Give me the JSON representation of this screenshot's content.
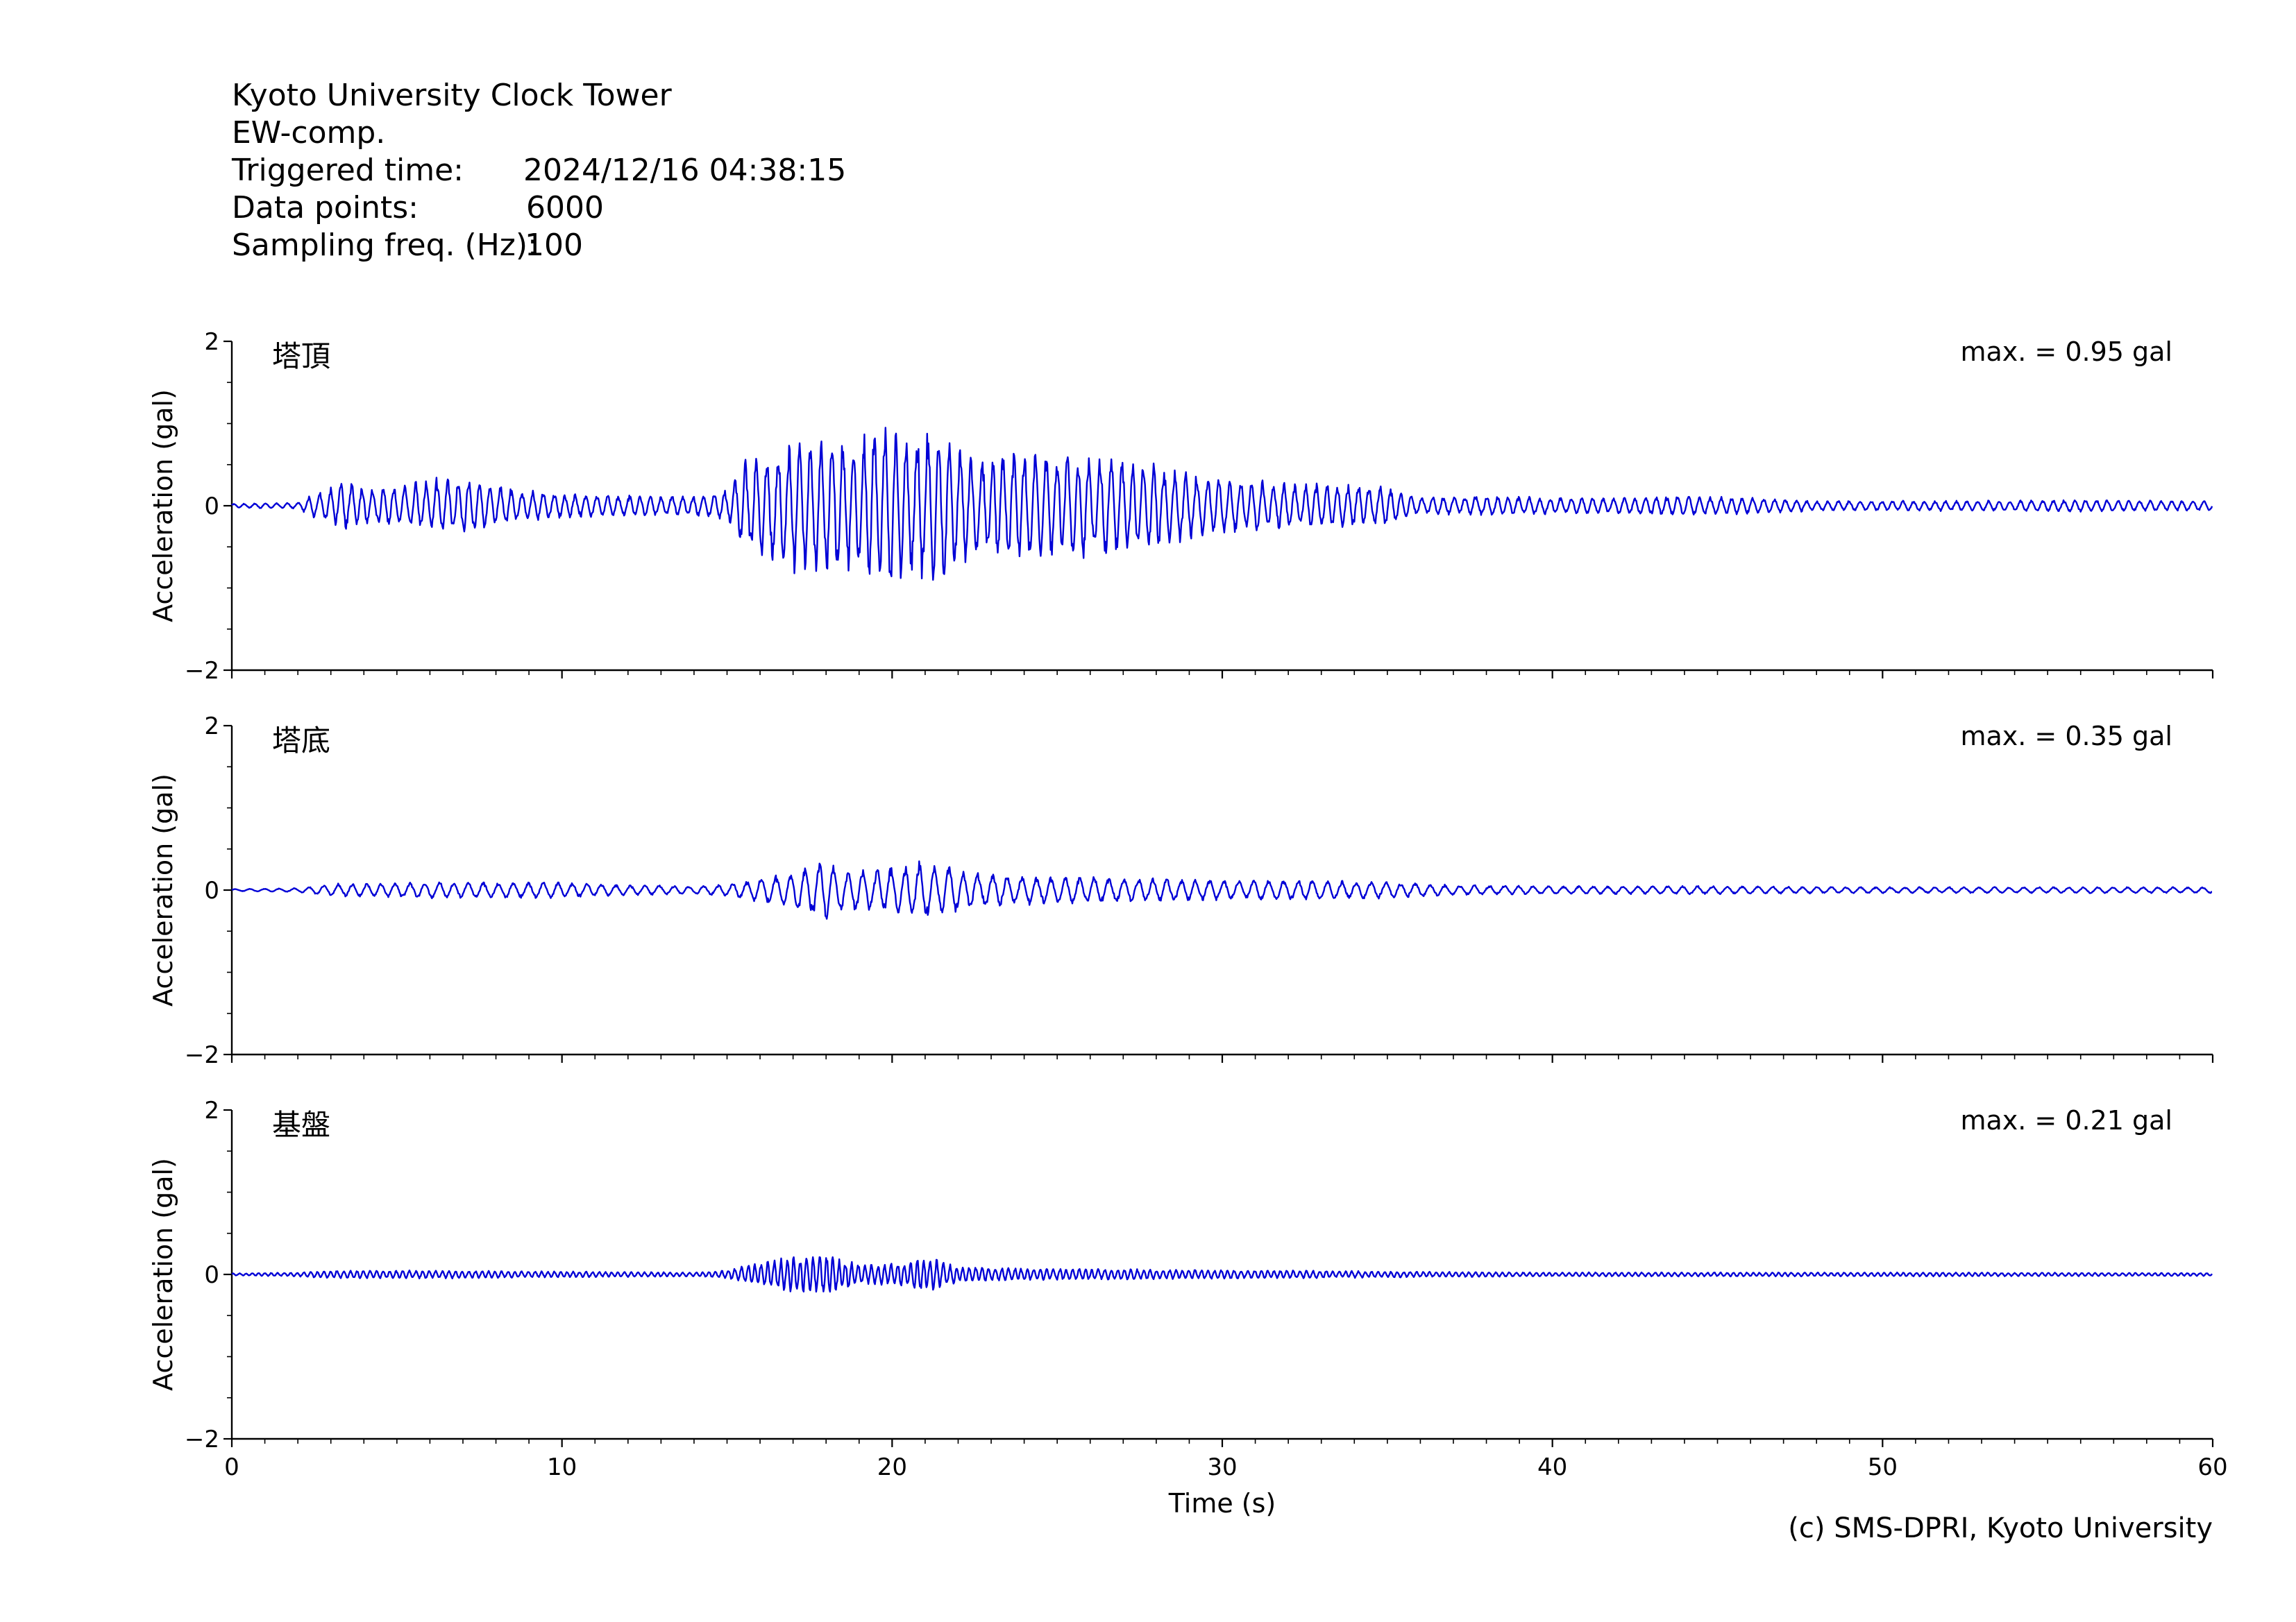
{
  "header": {
    "station": "Kyoto University Clock Tower",
    "component": "EW-comp.",
    "triggered_label": "Triggered time:",
    "triggered_value": "2024/12/16 04:38:15",
    "points_label": "Data points:",
    "points_value": "6000",
    "freq_label": "Sampling freq. (Hz):",
    "freq_value": "100"
  },
  "credit": "(c) SMS-DPRI, Kyoto University",
  "colors": {
    "trace": "#0000d6",
    "axes": "#000000"
  },
  "chart_data": [
    {
      "type": "line",
      "title": "塔頂",
      "annotation": "max. = 0.95 gal",
      "xlabel": "",
      "ylabel": "Acceleration (gal)",
      "xlim": [
        0,
        60
      ],
      "ylim": [
        -2,
        2
      ],
      "yticks": [
        "2",
        "0",
        "−2"
      ],
      "xticklabels": [],
      "series": [
        {
          "max_abs": 0.95,
          "envelope": [
            [
              0,
              0.02
            ],
            [
              2,
              0.03
            ],
            [
              2.5,
              0.12
            ],
            [
              3,
              0.18
            ],
            [
              3.4,
              0.25
            ],
            [
              4,
              0.18
            ],
            [
              5,
              0.2
            ],
            [
              6.5,
              0.28
            ],
            [
              7.2,
              0.3
            ],
            [
              8,
              0.2
            ],
            [
              9,
              0.15
            ],
            [
              10,
              0.12
            ],
            [
              12,
              0.1
            ],
            [
              14,
              0.1
            ],
            [
              15,
              0.15
            ],
            [
              15.5,
              0.45
            ],
            [
              16.5,
              0.6
            ],
            [
              17.5,
              0.7
            ],
            [
              19,
              0.65
            ],
            [
              19.7,
              0.85
            ],
            [
              20.5,
              0.7
            ],
            [
              21.5,
              0.8
            ],
            [
              22.5,
              0.45
            ],
            [
              23.5,
              0.55
            ],
            [
              25,
              0.52
            ],
            [
              26.5,
              0.5
            ],
            [
              28,
              0.42
            ],
            [
              29.5,
              0.3
            ],
            [
              31,
              0.25
            ],
            [
              33,
              0.22
            ],
            [
              35,
              0.2
            ],
            [
              36,
              0.08
            ],
            [
              38,
              0.1
            ],
            [
              40,
              0.08
            ],
            [
              42,
              0.08
            ],
            [
              44,
              0.1
            ],
            [
              46,
              0.08
            ],
            [
              48,
              0.05
            ],
            [
              50,
              0.05
            ],
            [
              53,
              0.05
            ],
            [
              56,
              0.06
            ],
            [
              58,
              0.05
            ],
            [
              60,
              0.05
            ]
          ],
          "dominant_period_s": 0.33
        }
      ]
    },
    {
      "type": "line",
      "title": "塔底",
      "annotation": "max. = 0.35 gal",
      "xlabel": "",
      "ylabel": "Acceleration (gal)",
      "xlim": [
        0,
        60
      ],
      "ylim": [
        -2,
        2
      ],
      "yticks": [
        "2",
        "0",
        "−2"
      ],
      "xticklabels": [],
      "series": [
        {
          "max_abs": 0.35,
          "envelope": [
            [
              0,
              0.01
            ],
            [
              2,
              0.02
            ],
            [
              3,
              0.06
            ],
            [
              6,
              0.08
            ],
            [
              10,
              0.08
            ],
            [
              12,
              0.05
            ],
            [
              14,
              0.04
            ],
            [
              15,
              0.06
            ],
            [
              16,
              0.12
            ],
            [
              17,
              0.18
            ],
            [
              18,
              0.32
            ],
            [
              18.6,
              0.2
            ],
            [
              20,
              0.22
            ],
            [
              21,
              0.3
            ],
            [
              22,
              0.2
            ],
            [
              24,
              0.14
            ],
            [
              27,
              0.12
            ],
            [
              30,
              0.1
            ],
            [
              33,
              0.1
            ],
            [
              35,
              0.08
            ],
            [
              37,
              0.05
            ],
            [
              40,
              0.04
            ],
            [
              45,
              0.04
            ],
            [
              50,
              0.03
            ],
            [
              55,
              0.03
            ],
            [
              60,
              0.03
            ]
          ],
          "dominant_period_s": 0.45
        }
      ]
    },
    {
      "type": "line",
      "title": "基盤",
      "annotation": "max. = 0.21 gal",
      "xlabel": "Time (s)",
      "ylabel": "Acceleration (gal)",
      "xlim": [
        0,
        60
      ],
      "ylim": [
        -2,
        2
      ],
      "yticks": [
        "2",
        "0",
        "−2"
      ],
      "xticklabels": [
        "0",
        "10",
        "20",
        "30",
        "40",
        "50",
        "60"
      ],
      "series": [
        {
          "max_abs": 0.21,
          "envelope": [
            [
              0,
              0.01
            ],
            [
              2,
              0.02
            ],
            [
              3,
              0.04
            ],
            [
              6,
              0.04
            ],
            [
              10,
              0.03
            ],
            [
              14,
              0.02
            ],
            [
              15,
              0.04
            ],
            [
              16,
              0.12
            ],
            [
              17,
              0.18
            ],
            [
              18,
              0.2
            ],
            [
              19,
              0.1
            ],
            [
              20.5,
              0.12
            ],
            [
              21.2,
              0.18
            ],
            [
              22,
              0.08
            ],
            [
              24,
              0.06
            ],
            [
              28,
              0.05
            ],
            [
              32,
              0.04
            ],
            [
              35,
              0.03
            ],
            [
              40,
              0.02
            ],
            [
              50,
              0.02
            ],
            [
              60,
              0.015
            ]
          ],
          "dominant_period_s": 0.2
        }
      ]
    }
  ]
}
